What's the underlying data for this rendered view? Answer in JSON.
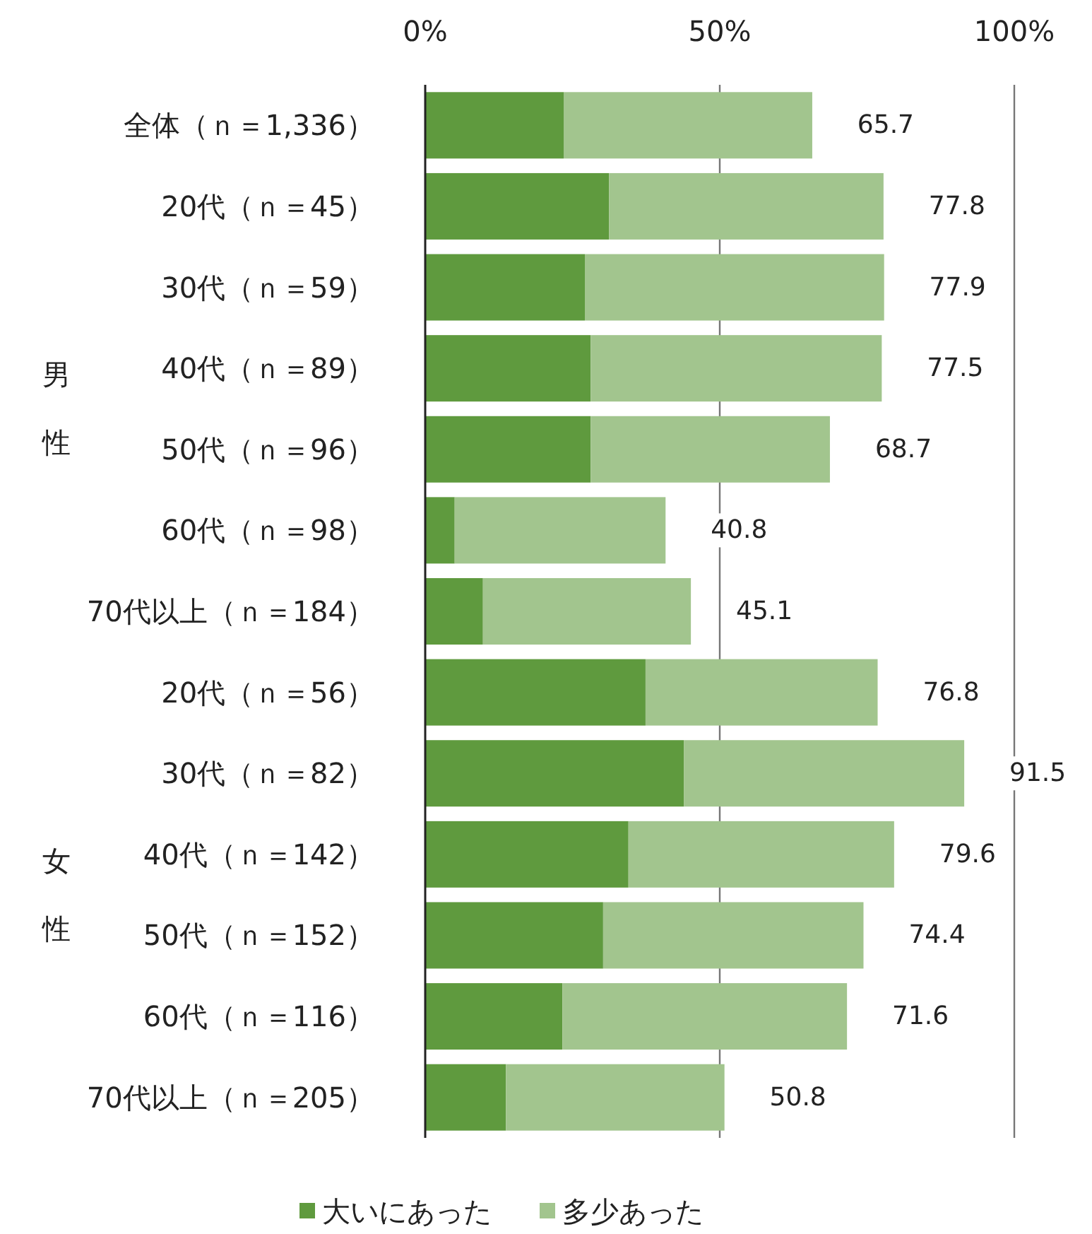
{
  "chart_data": {
    "type": "bar",
    "orientation": "horizontal",
    "stacked": true,
    "categories": [
      "全体（ｎ＝1,336）",
      "20代（ｎ＝45）",
      "30代（ｎ＝59）",
      "40代（ｎ＝89）",
      "50代（ｎ＝96）",
      "60代（ｎ＝98）",
      "70代以上（ｎ＝184）",
      "20代（ｎ＝56）",
      "30代（ｎ＝82）",
      "40代（ｎ＝142）",
      "50代（ｎ＝152）",
      "60代（ｎ＝116）",
      "70代以上（ｎ＝205）"
    ],
    "series": [
      {
        "name": "大いにあった",
        "color": "#5f9a3e",
        "values": [
          23.5,
          31.2,
          27.1,
          28.1,
          28.1,
          5.0,
          9.8,
          37.4,
          43.9,
          34.5,
          30.2,
          23.3,
          13.7
        ]
      },
      {
        "name": "多少あった",
        "color": "#a2c58e",
        "values": [
          42.2,
          46.6,
          50.8,
          49.4,
          40.6,
          35.8,
          35.3,
          39.4,
          47.6,
          45.1,
          44.2,
          48.3,
          37.1
        ]
      }
    ],
    "totals": [
      "65.7",
      "77.8",
      "77.9",
      "77.5",
      "68.7",
      "40.8",
      "45.1",
      "76.8",
      "91.5",
      "79.6",
      "74.4",
      "71.6",
      "50.8"
    ],
    "xlim": [
      0,
      100
    ],
    "xticks": [
      {
        "value": 0,
        "label": "0%"
      },
      {
        "value": 50,
        "label": "50%"
      },
      {
        "value": 100,
        "label": "100%"
      }
    ],
    "grid": "x",
    "legend": "bottom",
    "annotations": [
      "男性",
      "女性"
    ]
  }
}
